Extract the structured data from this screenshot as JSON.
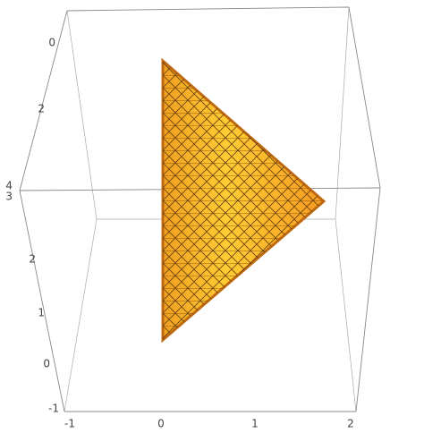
{
  "plot": {
    "x_tick_labels": [
      "-1",
      "0",
      "1",
      "2"
    ],
    "upper_axis_tick_labels": [
      "0",
      "2",
      "4"
    ],
    "lower_axis_tick_labels": [
      "3",
      "2",
      "1",
      "0",
      "-1"
    ]
  }
}
